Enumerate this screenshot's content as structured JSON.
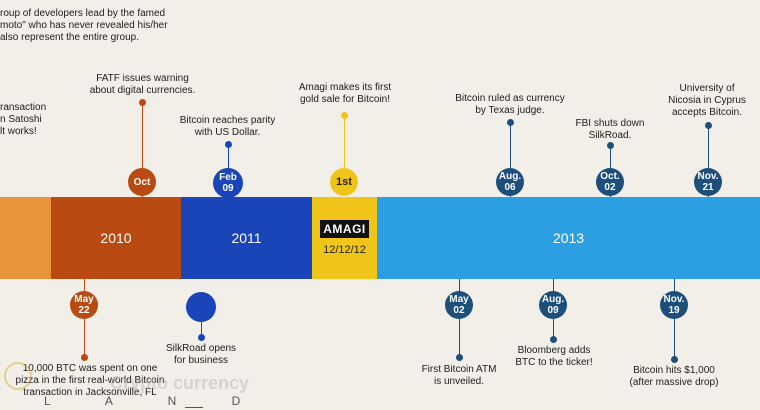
{
  "colors": {
    "orange": "#e8943a",
    "rust": "#b84a12",
    "navy": "#1a45b8",
    "yellow": "#f0c419",
    "sky": "#2c9fe3",
    "dark_circle": "#1d4f7a",
    "bg": "#f1efe8"
  },
  "bands": {
    "y2010": "2010",
    "y2011": "2011",
    "y2013": "2013",
    "amagi_logo": "AMAGI",
    "amagi_date": "12/12/12"
  },
  "top_events": {
    "group_note": "roup of developers lead by the famed\nmoto\" who has never revealed his/her\nalso represent the entire group.",
    "transaction_note": "ransaction\nn Satoshi\nlt works!",
    "fatf": "FATF issues warning\nabout digital currencies.",
    "parity": "Bitcoin reaches parity\nwith US Dollar.",
    "amagi": "Amagi makes its first\ngold sale for Bitcoin!",
    "texas": "Bitcoin ruled as currency\nby Texas judge.",
    "fbi": "FBI shuts down\nSilkRoad.",
    "nicosia": "University of\nNicosia in Cyprus\naccepts Bitcoin."
  },
  "top_circles": {
    "oct": "Oct",
    "feb": "Feb\n09",
    "first": "1st",
    "aug06": "Aug.\n06",
    "oct02": "Oct.\n02",
    "nov21": "Nov.\n21"
  },
  "bottom_circles": {
    "may22": "May\n22",
    "may02": "May\n02",
    "aug09": "Aug.\n09",
    "nov19": "Nov.\n19"
  },
  "bottom_events": {
    "pizza": "10,000 BTC was spent on one\npizza in the first real-world Bitcoin\ntransaction in Jacksonville, FL",
    "silkroad": "SilkRoad opens\nfor business",
    "atm": "First Bitcoin ATM\nis unveiled.",
    "bloomberg": "Bloomberg adds\nBTC to the ticker!",
    "hits1000": "Bitcoin hits $1,000\n(after massive drop)"
  },
  "watermark": {
    "brand": "Crypto currency",
    "land": "L A N D"
  }
}
